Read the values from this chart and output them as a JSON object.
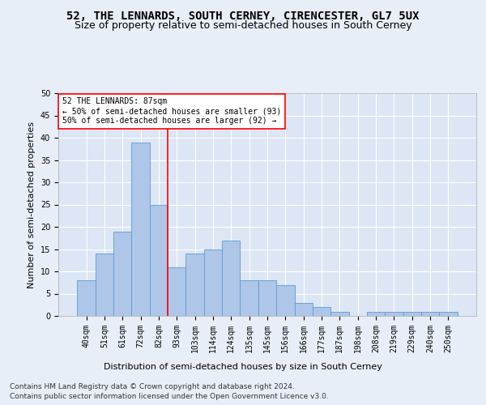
{
  "title": "52, THE LENNARDS, SOUTH CERNEY, CIRENCESTER, GL7 5UX",
  "subtitle": "Size of property relative to semi-detached houses in South Cerney",
  "xlabel": "Distribution of semi-detached houses by size in South Cerney",
  "ylabel": "Number of semi-detached properties",
  "categories": [
    "40sqm",
    "51sqm",
    "61sqm",
    "72sqm",
    "82sqm",
    "93sqm",
    "103sqm",
    "114sqm",
    "124sqm",
    "135sqm",
    "145sqm",
    "156sqm",
    "166sqm",
    "177sqm",
    "187sqm",
    "198sqm",
    "208sqm",
    "219sqm",
    "229sqm",
    "240sqm",
    "250sqm"
  ],
  "values": [
    8,
    14,
    19,
    39,
    25,
    11,
    14,
    15,
    17,
    8,
    8,
    7,
    3,
    2,
    1,
    0,
    1,
    1,
    1,
    1,
    1
  ],
  "bar_color": "#aec6e8",
  "bar_edge_color": "#5b9bd5",
  "vline_x": 4.5,
  "vline_color": "red",
  "annotation_text": "52 THE LENNARDS: 87sqm\n← 50% of semi-detached houses are smaller (93)\n50% of semi-detached houses are larger (92) →",
  "annotation_box_color": "white",
  "annotation_box_edge_color": "red",
  "ylim": [
    0,
    50
  ],
  "yticks": [
    0,
    5,
    10,
    15,
    20,
    25,
    30,
    35,
    40,
    45,
    50
  ],
  "footer1": "Contains HM Land Registry data © Crown copyright and database right 2024.",
  "footer2": "Contains public sector information licensed under the Open Government Licence v3.0.",
  "background_color": "#e8eef7",
  "plot_background_color": "#dce6f4",
  "grid_color": "white",
  "title_fontsize": 10,
  "subtitle_fontsize": 9,
  "axis_label_fontsize": 8,
  "tick_fontsize": 7,
  "annotation_fontsize": 7,
  "footer_fontsize": 6.5
}
